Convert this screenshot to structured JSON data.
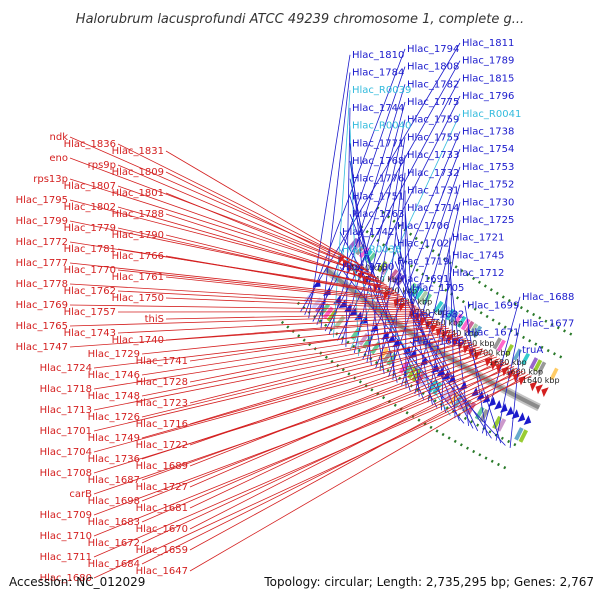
{
  "title": "Halorubrum lacusprofundi ATCC 49239 chromosome 1, complete g...",
  "accession": "Accession: NC_012029",
  "topology": "Topology: circular; Length: 2,735,295 bp; Genes: 2,767",
  "colors": {
    "forward": "#1a1acc",
    "reverse": "#d42020",
    "rna": "#33bbdd",
    "backbone": "#8a8a8a",
    "dots": "#2a7a2a"
  },
  "kbp_labels": [
    "1860 kbp",
    "1840 kbp",
    "1820 kbp",
    "1800 kbp",
    "1780 kbp",
    "1760 kbp",
    "1740 kbp",
    "1720 kbp",
    "1700 kbp",
    "1680 kbp",
    "1660 kbp",
    "1640 kbp"
  ],
  "right_genes": [
    {
      "name": "Hlac_1811",
      "type": "forward"
    },
    {
      "name": "Hlac_1794",
      "type": "forward"
    },
    {
      "name": "Hlac_1810",
      "type": "forward"
    },
    {
      "name": "Hlac_1789",
      "type": "forward"
    },
    {
      "name": "Hlac_1808",
      "type": "forward"
    },
    {
      "name": "Hlac_1784",
      "type": "forward"
    },
    {
      "name": "Hlac_1815",
      "type": "forward"
    },
    {
      "name": "Hlac_1782",
      "type": "forward"
    },
    {
      "name": "Hlac_R0039",
      "type": "rna"
    },
    {
      "name": "Hlac_1796",
      "type": "forward"
    },
    {
      "name": "Hlac_1775",
      "type": "forward"
    },
    {
      "name": "Hlac_1744",
      "type": "forward"
    },
    {
      "name": "Hlac_R0041",
      "type": "rna"
    },
    {
      "name": "Hlac_1759",
      "type": "forward"
    },
    {
      "name": "Hlac_R0040",
      "type": "rna"
    },
    {
      "name": "Hlac_1738",
      "type": "forward"
    },
    {
      "name": "Hlac_1755",
      "type": "forward"
    },
    {
      "name": "Hlac_1771",
      "type": "forward"
    },
    {
      "name": "Hlac_1754",
      "type": "forward"
    },
    {
      "name": "Hlac_1733",
      "type": "forward"
    },
    {
      "name": "Hlac_1768",
      "type": "forward"
    },
    {
      "name": "Hlac_1753",
      "type": "forward"
    },
    {
      "name": "Hlac_1732",
      "type": "forward"
    },
    {
      "name": "Hlac_1776",
      "type": "forward"
    },
    {
      "name": "Hlac_1752",
      "type": "forward"
    },
    {
      "name": "Hlac_1731",
      "type": "forward"
    },
    {
      "name": "Hlac_1751",
      "type": "forward"
    },
    {
      "name": "Hlac_1730",
      "type": "forward"
    },
    {
      "name": "Hlac_1714",
      "type": "forward"
    },
    {
      "name": "Hlac_1763",
      "type": "forward"
    },
    {
      "name": "Hlac_1725",
      "type": "forward"
    },
    {
      "name": "Hlac_1706",
      "type": "forward"
    },
    {
      "name": "Hlac_1742",
      "type": "forward"
    },
    {
      "name": "Hlac_1721",
      "type": "forward"
    },
    {
      "name": "Hlac_1702",
      "type": "forward"
    },
    {
      "name": "Hlac_R0038",
      "type": "rna"
    },
    {
      "name": "Hlac_1745",
      "type": "forward"
    },
    {
      "name": "Hlac_1719",
      "type": "forward"
    },
    {
      "name": "Hlac_1700",
      "type": "forward"
    },
    {
      "name": "Hlac_1712",
      "type": "forward"
    },
    {
      "name": "Hlac_1691",
      "type": "forward"
    },
    {
      "name": "Hlac_1705",
      "type": "forward"
    },
    {
      "name": "Hlac_1688",
      "type": "forward"
    },
    {
      "name": "Hlac_1699",
      "type": "forward"
    },
    {
      "name": "Hlac_1682",
      "type": "forward"
    },
    {
      "name": "Hlac_1677",
      "type": "forward"
    },
    {
      "name": "Hlac_1671",
      "type": "forward"
    },
    {
      "name": "Hlac_1666",
      "type": "forward"
    },
    {
      "name": "truA",
      "type": "forward"
    }
  ],
  "left_genes": [
    {
      "name": "ndk",
      "type": "reverse"
    },
    {
      "name": "Hlac_1836",
      "type": "reverse"
    },
    {
      "name": "Hlac_1831",
      "type": "reverse"
    },
    {
      "name": "eno",
      "type": "reverse"
    },
    {
      "name": "rps9p",
      "type": "reverse"
    },
    {
      "name": "Hlac_1809",
      "type": "reverse"
    },
    {
      "name": "rps13p",
      "type": "reverse"
    },
    {
      "name": "Hlac_1807",
      "type": "reverse"
    },
    {
      "name": "Hlac_1801",
      "type": "reverse"
    },
    {
      "name": "Hlac_1795",
      "type": "reverse"
    },
    {
      "name": "Hlac_1802",
      "type": "reverse"
    },
    {
      "name": "Hlac_1788",
      "type": "reverse"
    },
    {
      "name": "Hlac_1799",
      "type": "reverse"
    },
    {
      "name": "Hlac_1779",
      "type": "reverse"
    },
    {
      "name": "Hlac_1790",
      "type": "reverse"
    },
    {
      "name": "Hlac_1772",
      "type": "reverse"
    },
    {
      "name": "Hlac_1781",
      "type": "reverse"
    },
    {
      "name": "Hlac_1766",
      "type": "reverse"
    },
    {
      "name": "Hlac_1777",
      "type": "reverse"
    },
    {
      "name": "Hlac_1770",
      "type": "reverse"
    },
    {
      "name": "Hlac_1761",
      "type": "reverse"
    },
    {
      "name": "Hlac_1778",
      "type": "reverse"
    },
    {
      "name": "Hlac_1762",
      "type": "reverse"
    },
    {
      "name": "Hlac_1750",
      "type": "reverse"
    },
    {
      "name": "Hlac_1769",
      "type": "reverse"
    },
    {
      "name": "Hlac_1757",
      "type": "reverse"
    },
    {
      "name": "thiS",
      "type": "reverse"
    },
    {
      "name": "Hlac_1765",
      "type": "reverse"
    },
    {
      "name": "Hlac_1743",
      "type": "reverse"
    },
    {
      "name": "Hlac_1740",
      "type": "reverse"
    },
    {
      "name": "Hlac_1747",
      "type": "reverse"
    },
    {
      "name": "Hlac_1729",
      "type": "reverse"
    },
    {
      "name": "Hlac_1741",
      "type": "reverse"
    },
    {
      "name": "Hlac_1724",
      "type": "reverse"
    },
    {
      "name": "Hlac_1746",
      "type": "reverse"
    },
    {
      "name": "Hlac_1728",
      "type": "reverse"
    },
    {
      "name": "Hlac_1718",
      "type": "reverse"
    },
    {
      "name": "Hlac_1748",
      "type": "reverse"
    },
    {
      "name": "Hlac_1723",
      "type": "reverse"
    },
    {
      "name": "Hlac_1713",
      "type": "reverse"
    },
    {
      "name": "Hlac_1726",
      "type": "reverse"
    },
    {
      "name": "Hlac_1716",
      "type": "reverse"
    },
    {
      "name": "Hlac_1701",
      "type": "reverse"
    },
    {
      "name": "Hlac_1749",
      "type": "reverse"
    },
    {
      "name": "Hlac_1722",
      "type": "reverse"
    },
    {
      "name": "Hlac_1704",
      "type": "reverse"
    },
    {
      "name": "Hlac_1736",
      "type": "reverse"
    },
    {
      "name": "Hlac_1689",
      "type": "reverse"
    },
    {
      "name": "Hlac_1708",
      "type": "reverse"
    },
    {
      "name": "Hlac_1687",
      "type": "reverse"
    },
    {
      "name": "Hlac_1727",
      "type": "reverse"
    },
    {
      "name": "carB",
      "type": "reverse"
    },
    {
      "name": "Hlac_1698",
      "type": "reverse"
    },
    {
      "name": "Hlac_1681",
      "type": "reverse"
    },
    {
      "name": "Hlac_1709",
      "type": "reverse"
    },
    {
      "name": "Hlac_1683",
      "type": "reverse"
    },
    {
      "name": "Hlac_1670",
      "type": "reverse"
    },
    {
      "name": "Hlac_1710",
      "type": "reverse"
    },
    {
      "name": "Hlac_1672",
      "type": "reverse"
    },
    {
      "name": "Hlac_1659",
      "type": "reverse"
    },
    {
      "name": "Hlac_1711",
      "type": "reverse"
    },
    {
      "name": "Hlac_1684",
      "type": "reverse"
    },
    {
      "name": "Hlac_1647",
      "type": "reverse"
    },
    {
      "name": "Hlac_1680",
      "type": "reverse"
    }
  ]
}
